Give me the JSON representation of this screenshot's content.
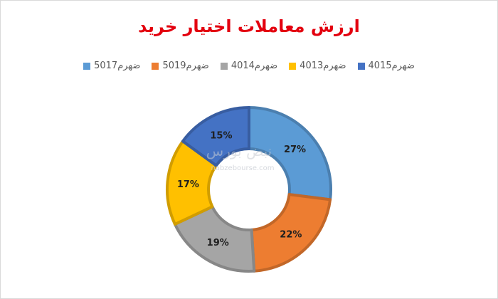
{
  "chart_data": {
    "type": "donut",
    "title": "ارزش معاملات اختیار خرید",
    "legend_position": "top",
    "categories": [
      "ضهرم5017",
      "ضهرم5019",
      "ضهرم4014",
      "ضهرم4013",
      "ضهرم4015"
    ],
    "values": [
      27,
      22,
      19,
      17,
      15
    ],
    "labels": [
      "27%",
      "22%",
      "19%",
      "17%",
      "15%"
    ],
    "colors": [
      "#5b9bd5",
      "#ed7d31",
      "#a5a5a5",
      "#ffc000",
      "#4472c4"
    ],
    "legend_order": [
      0,
      1,
      2,
      3,
      4
    ]
  },
  "watermark": {
    "brand": "نبض بورس",
    "url": "nabzebourse.com"
  }
}
